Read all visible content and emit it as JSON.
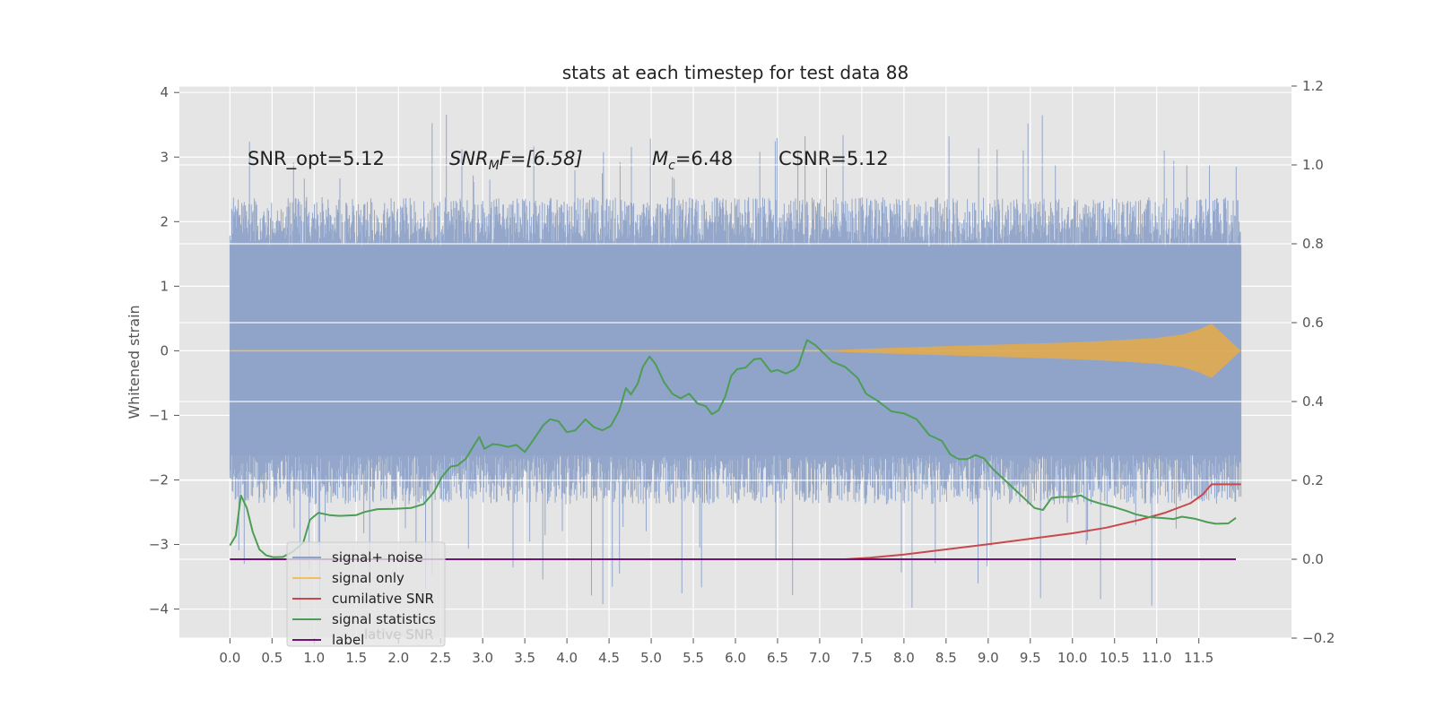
{
  "chart_data": {
    "type": "line",
    "title": "stats at each timestep for test data 88",
    "ylabel": "Whitened strain",
    "xlabel": "",
    "xlim": [
      -0.6,
      12.6
    ],
    "ylim": [
      -4.45,
      4.1
    ],
    "y2lim": [
      -0.2,
      1.2
    ],
    "grid": true,
    "x_ticks": [
      "0.0",
      "0.5",
      "1.0",
      "1.5",
      "2.0",
      "2.5",
      "3.0",
      "3.5",
      "4.0",
      "4.5",
      "5.0",
      "5.5",
      "6.0",
      "6.5",
      "7.0",
      "7.5",
      "8.0",
      "8.5",
      "9.0",
      "9.5",
      "10.0",
      "10.5",
      "11.0",
      "11.5"
    ],
    "y_ticks": [
      4,
      3,
      2,
      1,
      0,
      -1,
      -2,
      -3,
      -4
    ],
    "y_tick_labels": [
      "4",
      "3",
      "2",
      "1",
      "0",
      "−1",
      "−2",
      "−3",
      "−4"
    ],
    "y2_ticks": [
      1.2,
      1.0,
      0.8,
      0.6,
      0.4,
      0.2,
      0.0,
      -0.2
    ],
    "y2_tick_labels": [
      "1.2",
      "1.0",
      "0.8",
      "0.6",
      "0.4",
      "0.2",
      "0.0",
      "−0.2"
    ],
    "annotations": {
      "snr_opt": "SNR_opt=5.12",
      "snr_mf_base": "SNR",
      "snr_mf_sub": "M",
      "snr_mf_rest": "F=[6.58]",
      "mc_base": "M",
      "mc_sub": "c",
      "mc_rest": "=6.48",
      "csnr": "CSNR=5.12"
    },
    "noise_band": {
      "x_range": [
        0.0,
        12.0
      ],
      "typical_range": [
        -1.7,
        1.7
      ],
      "max_excursion": [
        -4.05,
        3.7
      ]
    },
    "series": [
      {
        "name": "signal+ noise",
        "axis": "left",
        "color": "#8fa3c8",
        "description_values": "noise-dominated strain sampled across 0 to 12 s"
      },
      {
        "name": "signal only",
        "axis": "left",
        "color": "#e5a94a",
        "chirp_envelope": {
          "x": [
            7.0,
            7.5,
            8.0,
            8.5,
            9.0,
            9.5,
            10.0,
            10.5,
            11.0,
            11.3,
            11.5,
            11.65,
            12.0
          ],
          "amp": [
            0.0,
            0.03,
            0.05,
            0.07,
            0.09,
            0.11,
            0.13,
            0.16,
            0.2,
            0.25,
            0.33,
            0.42,
            0.0
          ]
        }
      },
      {
        "name": "cumilative SNR",
        "axis": "right",
        "color": "#c8484b",
        "x": [
          0.0,
          7.3,
          7.6,
          8.0,
          8.5,
          9.0,
          9.5,
          10.0,
          10.4,
          10.8,
          11.1,
          11.4,
          11.55,
          11.65,
          12.0
        ],
        "values": [
          0.0,
          0.0,
          0.004,
          0.012,
          0.025,
          0.038,
          0.052,
          0.066,
          0.08,
          0.1,
          0.118,
          0.142,
          0.165,
          0.19,
          0.19
        ]
      },
      {
        "name": "signal statistics",
        "axis": "right",
        "color": "#4c9e55",
        "x": [
          0.0,
          0.07,
          0.13,
          0.2,
          0.27,
          0.35,
          0.43,
          0.52,
          0.63,
          0.75,
          0.87,
          0.95,
          1.05,
          1.18,
          1.3,
          1.5,
          1.6,
          1.75,
          1.95,
          2.15,
          2.3,
          2.42,
          2.52,
          2.62,
          2.7,
          2.8,
          2.9,
          2.96,
          3.02,
          3.12,
          3.2,
          3.3,
          3.4,
          3.5,
          3.6,
          3.72,
          3.8,
          3.9,
          4.0,
          4.1,
          4.22,
          4.32,
          4.42,
          4.52,
          4.62,
          4.7,
          4.76,
          4.84,
          4.9,
          4.98,
          5.05,
          5.15,
          5.25,
          5.35,
          5.45,
          5.55,
          5.65,
          5.72,
          5.8,
          5.88,
          5.95,
          6.02,
          6.12,
          6.22,
          6.3,
          6.42,
          6.5,
          6.6,
          6.7,
          6.75,
          6.85,
          6.95,
          7.05,
          7.15,
          7.3,
          7.45,
          7.55,
          7.7,
          7.85,
          8.0,
          8.15,
          8.3,
          8.45,
          8.55,
          8.65,
          8.75,
          8.85,
          8.95,
          9.05,
          9.2,
          9.4,
          9.55,
          9.65,
          9.75,
          9.85,
          10.0,
          10.1,
          10.2,
          10.35,
          10.5,
          10.65,
          10.75,
          10.9,
          11.1,
          11.2,
          11.3,
          11.45,
          11.6,
          11.7,
          11.85,
          11.94
        ],
        "values": [
          0.035,
          0.06,
          0.162,
          0.13,
          0.07,
          0.025,
          0.01,
          0.005,
          0.006,
          0.02,
          0.042,
          0.1,
          0.118,
          0.112,
          0.11,
          0.112,
          0.12,
          0.127,
          0.128,
          0.13,
          0.14,
          0.17,
          0.21,
          0.235,
          0.238,
          0.255,
          0.29,
          0.31,
          0.28,
          0.292,
          0.29,
          0.285,
          0.29,
          0.272,
          0.302,
          0.34,
          0.355,
          0.35,
          0.322,
          0.327,
          0.355,
          0.335,
          0.327,
          0.338,
          0.377,
          0.434,
          0.418,
          0.445,
          0.488,
          0.514,
          0.495,
          0.45,
          0.42,
          0.408,
          0.42,
          0.395,
          0.388,
          0.368,
          0.378,
          0.413,
          0.465,
          0.482,
          0.486,
          0.507,
          0.509,
          0.476,
          0.48,
          0.471,
          0.481,
          0.493,
          0.556,
          0.543,
          0.522,
          0.501,
          0.488,
          0.46,
          0.42,
          0.4,
          0.375,
          0.37,
          0.355,
          0.315,
          0.3,
          0.266,
          0.254,
          0.254,
          0.264,
          0.256,
          0.23,
          0.2,
          0.16,
          0.13,
          0.125,
          0.155,
          0.158,
          0.158,
          0.162,
          0.15,
          0.14,
          0.132,
          0.122,
          0.114,
          0.107,
          0.104,
          0.102,
          0.108,
          0.103,
          0.094,
          0.09,
          0.091,
          0.105
        ]
      },
      {
        "name": "label",
        "axis": "right",
        "color": "#70127a",
        "x": [
          0.0,
          11.94
        ],
        "values": [
          0.0,
          0.0
        ]
      }
    ],
    "legend": {
      "placement": "lower-left",
      "entries": [
        {
          "label": "signal+ noise",
          "color": "#8fa3c8"
        },
        {
          "label": "signal only",
          "color": "#f0c060"
        },
        {
          "label": "cumilative SNR",
          "color": "#c8484b"
        },
        {
          "label": "signal statistics",
          "color": "#4c9e55"
        },
        {
          "label": "label",
          "color": "#70127a"
        }
      ],
      "shadow_text": "lative SNR"
    }
  }
}
